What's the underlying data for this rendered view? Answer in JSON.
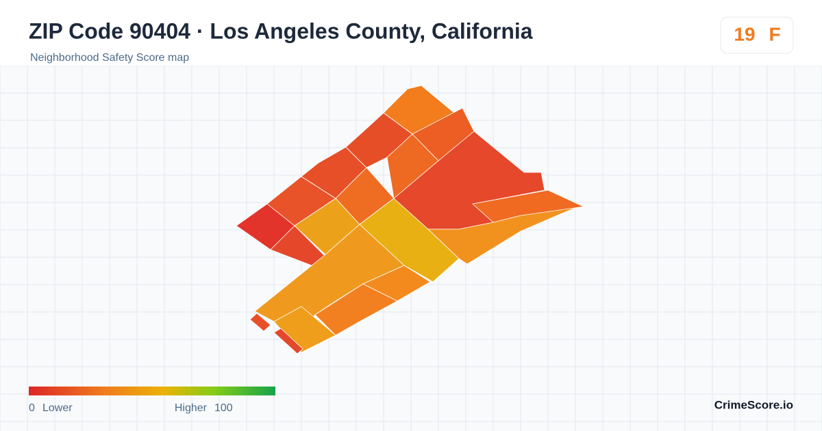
{
  "header": {
    "title": "ZIP Code 90404 · Los Angeles County, California",
    "subtitle": "Neighborhood Safety Score map"
  },
  "score": {
    "value": 19,
    "grade": "F"
  },
  "legend": {
    "min": {
      "value": 0,
      "label": "Lower"
    },
    "max": {
      "value": 100,
      "label": "Higher"
    }
  },
  "brand": "CrimeScore.io"
}
